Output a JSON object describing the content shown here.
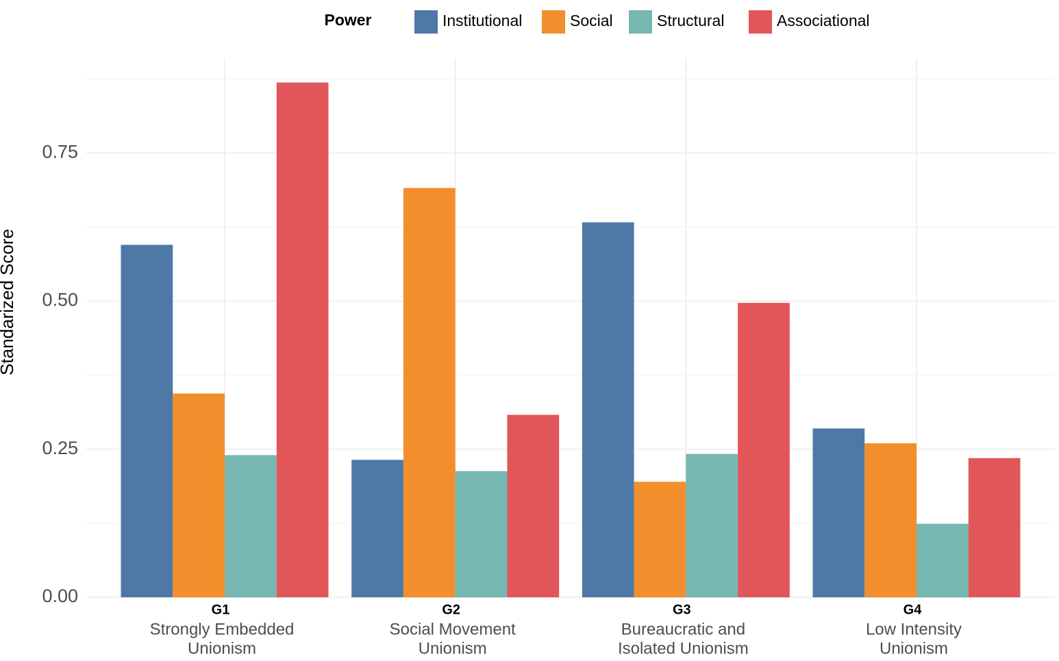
{
  "chart_data": {
    "type": "bar",
    "y_label": "Standarized Score",
    "legend_title": "Power",
    "categories": [
      "G1",
      "G2",
      "G3",
      "G4"
    ],
    "category_descriptions": [
      [
        "Strongly Embedded",
        "Unionism"
      ],
      [
        "Social Movement",
        "Unionism"
      ],
      [
        "Bureaucratic and",
        "Isolated Unionism"
      ],
      [
        "Low Intensity",
        "Unionism"
      ]
    ],
    "series": [
      {
        "name": "Institutional",
        "color": "#4e79a7",
        "values": [
          0.595,
          0.232,
          0.633,
          0.285
        ]
      },
      {
        "name": "Social",
        "color": "#f28e2b",
        "values": [
          0.344,
          0.691,
          0.195,
          0.26
        ]
      },
      {
        "name": "Structural",
        "color": "#76b7b2",
        "values": [
          0.24,
          0.213,
          0.242,
          0.124
        ]
      },
      {
        "name": "Associational",
        "color": "#e15759",
        "values": [
          0.869,
          0.308,
          0.497,
          0.235
        ]
      }
    ],
    "ylim": [
      0,
      0.91
    ],
    "yticks": [
      {
        "value": 0,
        "label": "0.00"
      },
      {
        "value": 0.25,
        "label": "0.25"
      },
      {
        "value": 0.5,
        "label": "0.50"
      },
      {
        "value": 0.75,
        "label": "0.75"
      }
    ],
    "minor_yticks": [
      0.125,
      0.375,
      0.625,
      0.875
    ],
    "grid": true,
    "legend_position": "top"
  }
}
